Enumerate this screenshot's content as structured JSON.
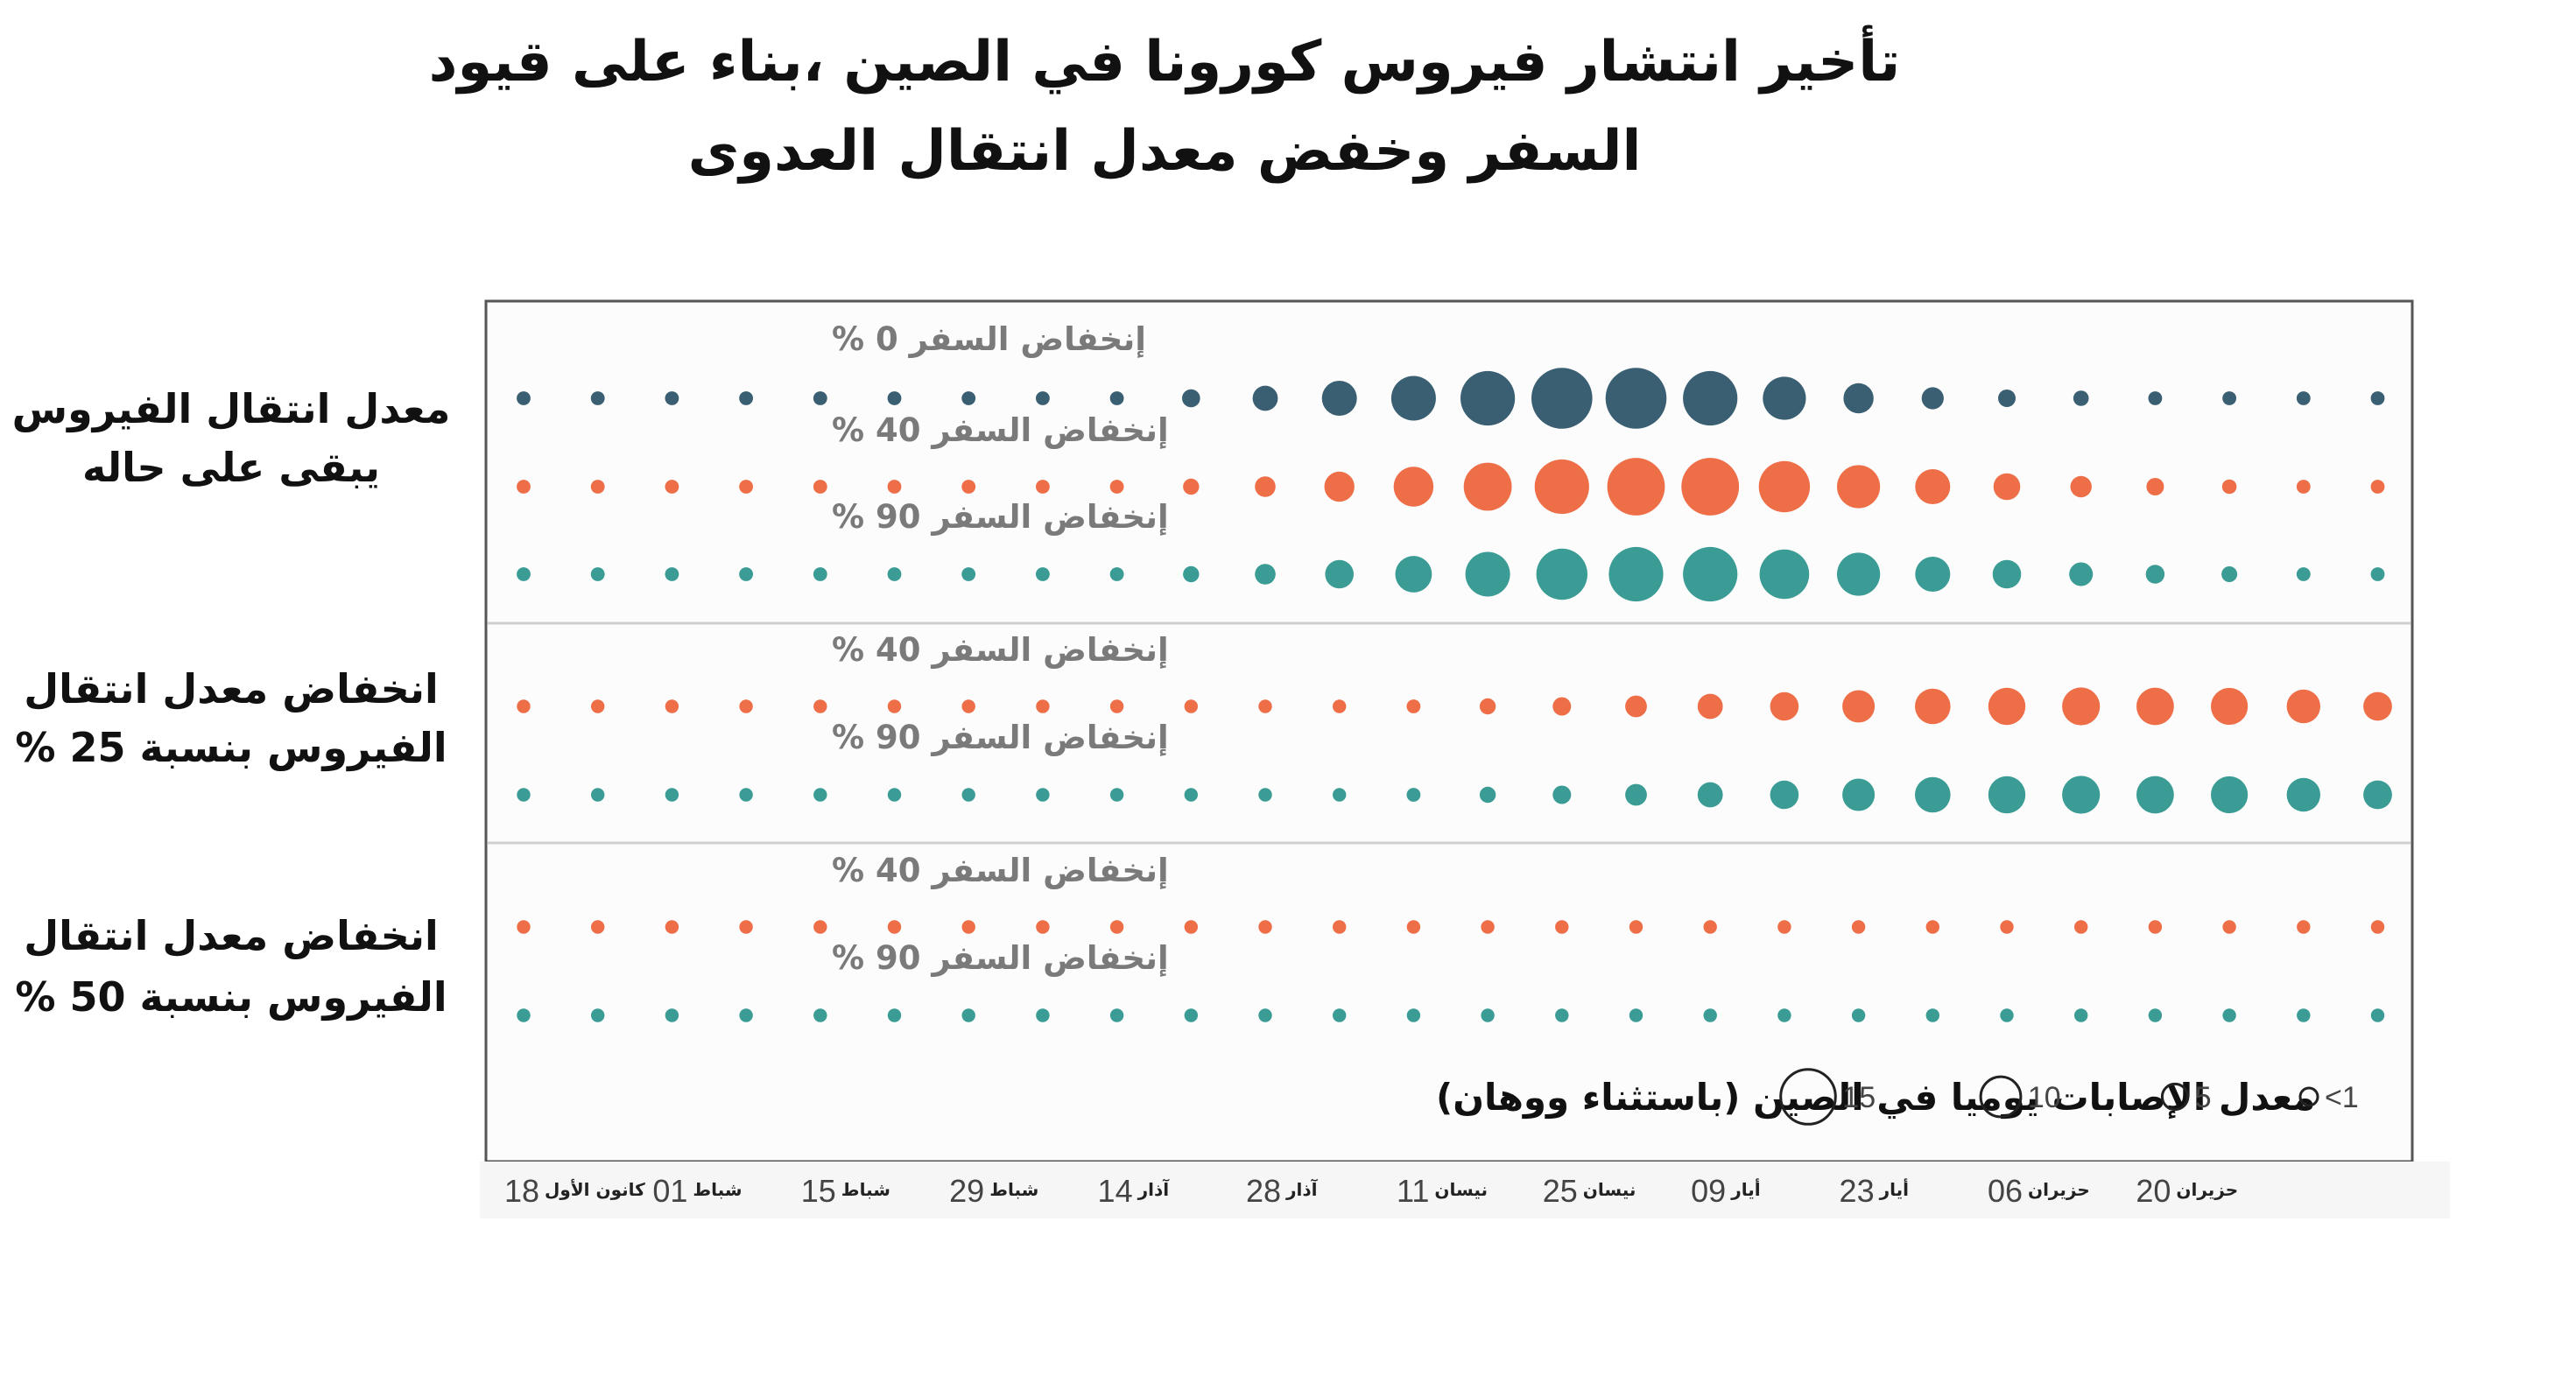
{
  "title": {
    "line1": "تأخير انتشار فيروس كورونا في الصين ،بناء على  قيود",
    "line2": "السفر وخفض معدل انتقال العدوى"
  },
  "colors": {
    "dark": "#3a5f72",
    "orange": "#ee6e48",
    "teal": "#3a9c95",
    "panel_border": "#555555",
    "divider": "#cfcfcf",
    "series_label": "#7a7a7a"
  },
  "chart_data": {
    "type": "bubble-grid",
    "title": "تأخير انتشار فيروس كورونا في الصين ،بناء على  قيود السفر وخفض معدل انتقال العدوى",
    "x_ticks": [
      {
        "num": "18",
        "month": "كانون الأول"
      },
      {
        "num": "01",
        "month": "شباط"
      },
      {
        "num": "15",
        "month": "شباط"
      },
      {
        "num": "29",
        "month": "شباط"
      },
      {
        "num": "14",
        "month": "آذار"
      },
      {
        "num": "28",
        "month": "آذار"
      },
      {
        "num": "11",
        "month": "نيسان"
      },
      {
        "num": "25",
        "month": "نيسان"
      },
      {
        "num": "09",
        "month": "أيار"
      },
      {
        "num": "23",
        "month": "أيار"
      },
      {
        "num": "06",
        "month": "حزيران"
      },
      {
        "num": "20",
        "month": "حزيران"
      }
    ],
    "legend": {
      "title": "معدل الإصابات يوميا في الصين (باستثناء ووهان)",
      "sizes": [
        {
          "label": "15",
          "value": 15
        },
        {
          "label": "10",
          "value": 10
        },
        {
          "label": "5",
          "value": 5
        },
        {
          "label": "<1",
          "value": 0.5
        }
      ]
    },
    "panels": [
      {
        "label_lines": [
          "معدل انتقال الفيروس",
          "يبقى على حاله"
        ],
        "series": [
          {
            "label": "إنخفاض السفر 0 %",
            "color": "dark",
            "values": [
              0.5,
              0.5,
              0.5,
              0.5,
              0.5,
              0.5,
              0.5,
              0.5,
              0.5,
              1.8,
              4,
              7,
              10,
              13,
              15,
              15,
              13,
              9.5,
              5.5,
              3,
              1.6,
              1,
              0.5,
              0.5,
              0.5,
              0.5
            ]
          },
          {
            "label": "إنخفاض السفر 40 %",
            "color": "orange",
            "values": [
              0.5,
              0.5,
              0.5,
              0.5,
              0.5,
              0.5,
              0.5,
              0.5,
              0.5,
              1.2,
              2.6,
              5.5,
              8.5,
              11,
              13,
              14,
              14,
              12,
              9.5,
              7,
              4.5,
              2.8,
              1.6,
              0.7,
              0.5,
              0.5
            ]
          },
          {
            "label": "إنخفاض السفر 90 %",
            "color": "teal",
            "values": [
              0.5,
              0.5,
              0.5,
              0.5,
              0.5,
              0.5,
              0.5,
              0.5,
              0.5,
              1.2,
              2.6,
              5,
              7.5,
              10,
              12,
              13,
              13,
              11.5,
              9.5,
              7,
              5,
              3.5,
              2,
              1.1,
              0.5,
              0.5
            ]
          }
        ]
      },
      {
        "label_lines": [
          "انخفاض معدل انتقال",
          "الفيروس بنسبة 25  %"
        ],
        "series": [
          {
            "label": "إنخفاض السفر 40 %",
            "color": "orange",
            "values": [
              0.4,
              0.4,
              0.4,
              0.4,
              0.4,
              0.4,
              0.4,
              0.4,
              0.4,
              0.4,
              0.4,
              0.4,
              0.5,
              1.2,
              1.9,
              2.9,
              4,
              5,
              6.2,
              7.2,
              7.7,
              7.9,
              7.8,
              7.6,
              6.6,
              5.1
            ]
          },
          {
            "label": "إنخفاض السفر 90 %",
            "color": "teal",
            "values": [
              0.4,
              0.4,
              0.4,
              0.4,
              0.4,
              0.4,
              0.4,
              0.4,
              0.4,
              0.4,
              0.4,
              0.4,
              0.5,
              1.2,
              1.9,
              2.9,
              4,
              5,
              6.2,
              7.2,
              7.7,
              7.9,
              7.8,
              7.6,
              6.6,
              5.1
            ]
          }
        ]
      },
      {
        "label_lines": [
          "انخفاض معدل انتقال",
          "الفيروس بنسبة 50  %"
        ],
        "series": [
          {
            "label": "إنخفاض السفر 40 %",
            "color": "orange",
            "values": [
              0.4,
              0.4,
              0.4,
              0.4,
              0.4,
              0.4,
              0.4,
              0.4,
              0.4,
              0.4,
              0.4,
              0.4,
              0.4,
              0.4,
              0.4,
              0.4,
              0.4,
              0.4,
              0.4,
              0.4,
              0.4,
              0.4,
              0.4,
              0.4,
              0.4,
              0.4
            ]
          },
          {
            "label": "إنخفاض السفر 90 %",
            "color": "teal",
            "values": [
              0.4,
              0.4,
              0.4,
              0.4,
              0.4,
              0.4,
              0.4,
              0.4,
              0.4,
              0.4,
              0.4,
              0.4,
              0.4,
              0.4,
              0.4,
              0.4,
              0.4,
              0.4,
              0.4,
              0.4,
              0.4,
              0.4,
              0.4,
              0.4,
              0.4,
              0.4
            ]
          }
        ]
      }
    ]
  }
}
